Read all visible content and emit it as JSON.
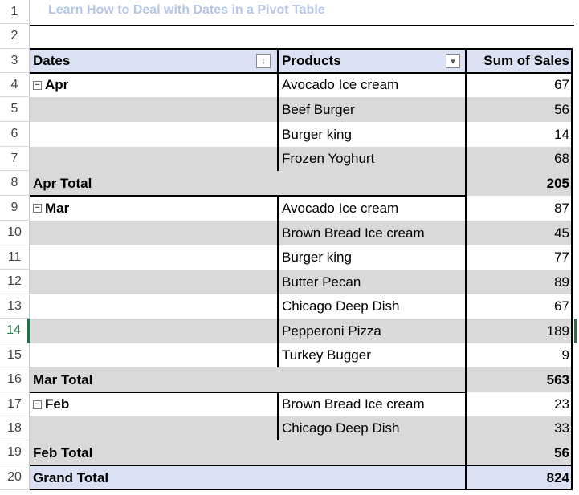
{
  "sheet": {
    "title": "Learn How to Deal with Dates in a Pivot Table",
    "row_numbers": [
      "1",
      "2",
      "3",
      "4",
      "5",
      "6",
      "7",
      "8",
      "9",
      "10",
      "11",
      "12",
      "13",
      "14",
      "15",
      "16",
      "17",
      "18",
      "19",
      "20"
    ]
  },
  "pivot": {
    "headers": {
      "dates": "Dates",
      "products": "Products",
      "sum": "Sum of Sales"
    },
    "groups": [
      {
        "month": "Apr",
        "rows": [
          {
            "product": "Avocado Ice cream",
            "value": "67"
          },
          {
            "product": "Beef Burger",
            "value": "56"
          },
          {
            "product": "Burger king",
            "value": "14"
          },
          {
            "product": "Frozen Yoghurt",
            "value": "68"
          }
        ],
        "total_label": "Apr Total",
        "total_value": "205"
      },
      {
        "month": "Mar",
        "rows": [
          {
            "product": "Avocado Ice cream",
            "value": "87"
          },
          {
            "product": "Brown Bread Ice cream",
            "value": "45"
          },
          {
            "product": "Burger king",
            "value": "77"
          },
          {
            "product": "Butter Pecan",
            "value": "89"
          },
          {
            "product": "Chicago Deep Dish",
            "value": "67"
          },
          {
            "product": "Pepperoni Pizza",
            "value": "189"
          },
          {
            "product": "Turkey Bugger",
            "value": "9"
          }
        ],
        "total_label": "Mar Total",
        "total_value": "563"
      },
      {
        "month": "Feb",
        "rows": [
          {
            "product": "Brown Bread Ice cream",
            "value": "23"
          },
          {
            "product": "Chicago Deep Dish",
            "value": "33"
          }
        ],
        "total_label": "Feb Total",
        "total_value": "56"
      }
    ],
    "grand_total_label": "Grand Total",
    "grand_total_value": "824"
  },
  "colors": {
    "header_band": "#d9e1f2",
    "total_band": "#d9d9d9",
    "selection": "#217346"
  }
}
